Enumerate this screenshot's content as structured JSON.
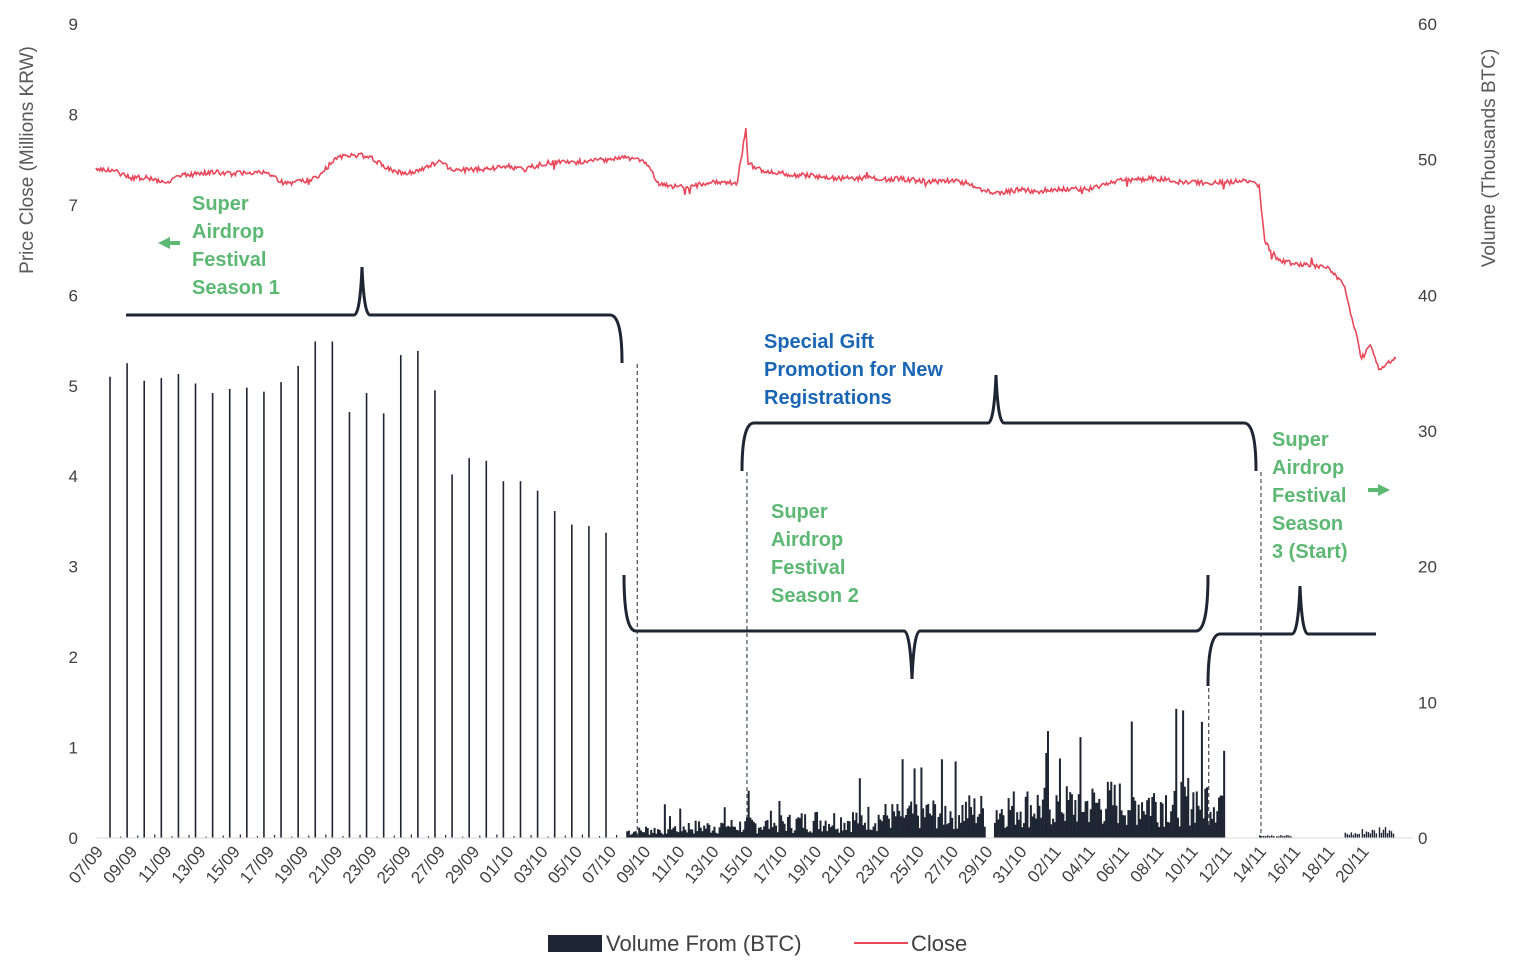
{
  "chart_data": {
    "type": "bar+line",
    "x_ticks": [
      "07/09",
      "09/09",
      "11/09",
      "13/09",
      "15/09",
      "17/09",
      "19/09",
      "21/09",
      "23/09",
      "25/09",
      "27/09",
      "29/09",
      "01/10",
      "03/10",
      "05/10",
      "07/10",
      "09/10",
      "11/10",
      "13/10",
      "15/10",
      "17/10",
      "19/10",
      "21/10",
      "23/10",
      "25/10",
      "27/10",
      "29/10",
      "31/10",
      "02/11",
      "04/11",
      "06/11",
      "08/11",
      "10/11",
      "12/11",
      "14/11",
      "16/11",
      "18/11",
      "20/11"
    ],
    "y_left": {
      "label": "Price Close (Millions KRW)",
      "min": 0,
      "max": 9,
      "ticks": [
        "0",
        "1",
        "2",
        "3",
        "4",
        "5",
        "6",
        "7",
        "8",
        "9"
      ]
    },
    "y_right": {
      "label": "Volume  (Thousands  BTC)",
      "min": 0,
      "max": 60,
      "ticks": [
        "0",
        "10",
        "20",
        "30",
        "40",
        "50",
        "60"
      ]
    },
    "legend": {
      "position": "bottom",
      "items": [
        "Volume From (BTC)",
        "Close"
      ]
    },
    "series": [
      {
        "name": "Volume From (BTC)",
        "axis": "right",
        "color": "#1f2633",
        "daily_spikes": {
          "dates": [
            "07/09",
            "08/09",
            "09/09",
            "10/09",
            "11/09",
            "12/09",
            "13/09",
            "14/09",
            "15/09",
            "16/09",
            "17/09",
            "18/09",
            "19/09",
            "20/09",
            "21/09",
            "22/09",
            "23/09",
            "24/09",
            "25/09",
            "26/09",
            "27/09",
            "28/09",
            "29/09",
            "30/09",
            "01/10",
            "02/10",
            "03/10",
            "04/10",
            "05/10",
            "06/10",
            "07/10"
          ],
          "values": [
            34.0,
            35.0,
            33.7,
            33.9,
            34.2,
            33.5,
            32.8,
            33.1,
            33.2,
            32.9,
            33.6,
            34.8,
            36.6,
            36.6,
            31.4,
            32.8,
            31.3,
            35.6,
            35.9,
            33.0,
            26.8,
            28.0,
            27.8,
            26.3,
            26.3,
            25.6,
            24.1,
            23.1,
            23.0,
            22.5,
            0
          ]
        },
        "continuous": {
          "start": "08/10 00:00",
          "end": "12/11 00:00",
          "step_days": 0.1,
          "baseline_by_day": [
            0.5,
            0.6,
            0.7,
            0.8,
            0.8,
            0.9,
            0.9,
            1.0,
            1.0,
            1.1,
            1.2,
            1.3,
            1.3,
            1.4,
            1.5,
            1.6,
            1.7,
            1.8,
            1.9,
            2.0,
            2.0,
            2.1,
            2.2,
            2.3,
            2.4,
            2.4,
            2.5,
            2.5,
            2.6,
            2.6,
            2.7,
            2.7,
            2.8,
            2.9,
            3.0
          ],
          "peak": 11.0,
          "gap": [
            "29/10 00:00",
            "29/10 12:00"
          ]
        },
        "late_small": [
          {
            "date": "14/11",
            "value": 0.3
          },
          {
            "date": "15/11",
            "value": 0.2
          },
          {
            "date": "19/11",
            "value": 0.4
          },
          {
            "date": "20/11",
            "value": 0.6
          },
          {
            "date": "21/11",
            "value": 0.8
          }
        ]
      },
      {
        "name": "Close",
        "axis": "left",
        "color": "#e8485a",
        "points": [
          [
            "07/09",
            7.41
          ],
          [
            "08/09",
            7.38
          ],
          [
            "09/09",
            7.3
          ],
          [
            "10/09",
            7.3
          ],
          [
            "11/09",
            7.25
          ],
          [
            "12/09",
            7.32
          ],
          [
            "13/09",
            7.35
          ],
          [
            "14/09",
            7.36
          ],
          [
            "15/09",
            7.34
          ],
          [
            "16/09",
            7.36
          ],
          [
            "17/09",
            7.35
          ],
          [
            "18/09",
            7.24
          ],
          [
            "19/09",
            7.26
          ],
          [
            "20/09",
            7.3
          ],
          [
            "21/09",
            7.52
          ],
          [
            "22/09",
            7.55
          ],
          [
            "23/09",
            7.54
          ],
          [
            "24/09",
            7.4
          ],
          [
            "25/09",
            7.34
          ],
          [
            "26/09",
            7.38
          ],
          [
            "27/09",
            7.48
          ],
          [
            "28/09",
            7.38
          ],
          [
            "29/09",
            7.39
          ],
          [
            "30/09",
            7.4
          ],
          [
            "01/10",
            7.43
          ],
          [
            "02/10",
            7.39
          ],
          [
            "03/10",
            7.45
          ],
          [
            "04/10",
            7.48
          ],
          [
            "05/10",
            7.47
          ],
          [
            "06/10",
            7.49
          ],
          [
            "07/10",
            7.5
          ],
          [
            "08/10",
            7.52
          ],
          [
            "09/10",
            7.49
          ],
          [
            "10/10",
            7.22
          ],
          [
            "11/10",
            7.2
          ],
          [
            "12/10",
            7.21
          ],
          [
            "13/10",
            7.25
          ],
          [
            "14/10",
            7.24
          ],
          [
            "14/10 12:00",
            7.25
          ],
          [
            "15/10",
            7.85
          ],
          [
            "15/10 03:00",
            7.45
          ],
          [
            "16/10",
            7.38
          ],
          [
            "17/10",
            7.35
          ],
          [
            "18/10",
            7.33
          ],
          [
            "19/10",
            7.32
          ],
          [
            "20/10",
            7.3
          ],
          [
            "21/10",
            7.29
          ],
          [
            "22/10",
            7.3
          ],
          [
            "23/10",
            7.28
          ],
          [
            "24/10",
            7.29
          ],
          [
            "25/10",
            7.27
          ],
          [
            "26/10",
            7.26
          ],
          [
            "27/10",
            7.27
          ],
          [
            "28/10",
            7.24
          ],
          [
            "29/10",
            7.15
          ],
          [
            "30/10",
            7.14
          ],
          [
            "31/10",
            7.17
          ],
          [
            "01/11",
            7.15
          ],
          [
            "02/11",
            7.17
          ],
          [
            "03/11",
            7.18
          ],
          [
            "04/11",
            7.17
          ],
          [
            "05/11",
            7.22
          ],
          [
            "06/11",
            7.27
          ],
          [
            "07/11",
            7.28
          ],
          [
            "08/11",
            7.29
          ],
          [
            "09/11",
            7.26
          ],
          [
            "10/11",
            7.25
          ],
          [
            "11/11",
            7.24
          ],
          [
            "12/11",
            7.25
          ],
          [
            "13/11",
            7.26
          ],
          [
            "14/11",
            7.22
          ],
          [
            "14/11 08:00",
            6.6
          ],
          [
            "15/11",
            6.4
          ],
          [
            "16/11",
            6.35
          ],
          [
            "17/11",
            6.32
          ],
          [
            "18/11",
            6.32
          ],
          [
            "19/11",
            6.1
          ],
          [
            "20/11",
            5.3
          ],
          [
            "20/11 12:00",
            5.45
          ],
          [
            "21/11",
            5.18
          ],
          [
            "22/11",
            5.3
          ]
        ]
      }
    ],
    "annotations": [
      {
        "text": [
          "Super",
          "Airdrop",
          "Festival",
          "Season 1"
        ],
        "color": "#5cb873",
        "arrow": "left",
        "brace": {
          "from": "07/09",
          "to": "08/10",
          "orientation": "down"
        }
      },
      {
        "text": [
          "Special Gift",
          "Promotion for New",
          "Registrations"
        ],
        "color": "#1a66b4",
        "brace": {
          "from": "15/10",
          "to": "13/11",
          "orientation": "down"
        }
      },
      {
        "text": [
          "Super",
          "Airdrop",
          "Festival",
          "Season 2"
        ],
        "color": "#5cb873",
        "brace": {
          "from": "08/10",
          "to": "11/11",
          "orientation": "up"
        }
      },
      {
        "text": [
          "Super",
          "Airdrop",
          "Festival",
          "Season",
          "3 (Start)"
        ],
        "color": "#5cb873",
        "arrow": "right",
        "brace": {
          "from": "11/11",
          "to": "21/11",
          "orientation": "up"
        }
      }
    ],
    "title": "",
    "xlabel": ""
  }
}
